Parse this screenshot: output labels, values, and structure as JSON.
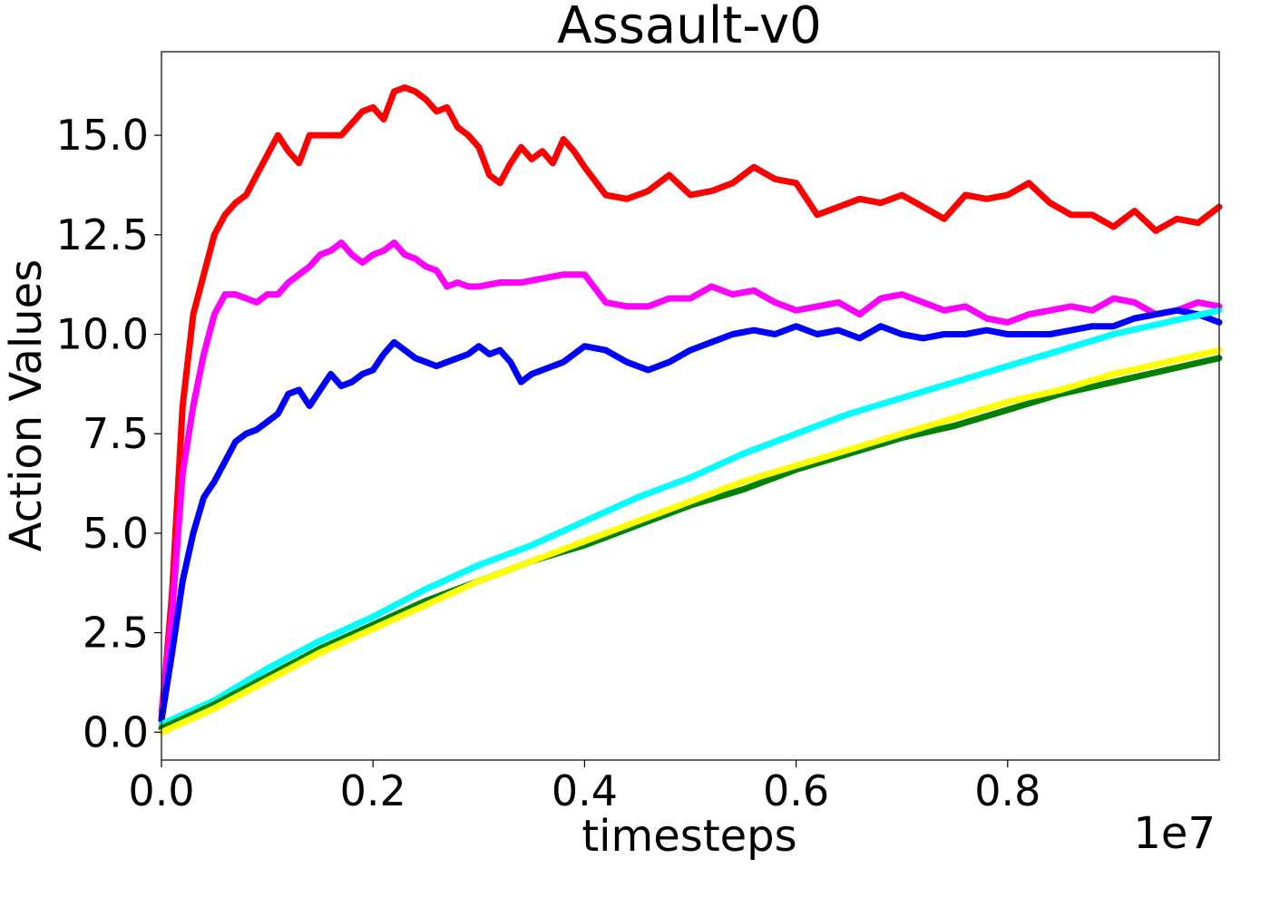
{
  "chart_data": {
    "type": "line",
    "title": "Assault-v0",
    "xlabel": "timesteps",
    "ylabel": "Action Values",
    "x_offset_text": "1e7",
    "xlim": [
      0.0,
      1.0
    ],
    "ylim": [
      -0.7,
      17.1
    ],
    "x_ticks": [
      0.0,
      0.2,
      0.4,
      0.6,
      0.8
    ],
    "x_tick_labels": [
      "0.0",
      "0.2",
      "0.4",
      "0.6",
      "0.8"
    ],
    "y_ticks": [
      0.0,
      2.5,
      5.0,
      7.5,
      10.0,
      12.5,
      15.0
    ],
    "y_tick_labels": [
      "0.0",
      "2.5",
      "5.0",
      "7.5",
      "10.0",
      "12.5",
      "15.0"
    ],
    "grid": false,
    "legend": "none",
    "series": [
      {
        "color": "#ff0000",
        "x": [
          0.0,
          0.01,
          0.02,
          0.03,
          0.04,
          0.05,
          0.06,
          0.07,
          0.08,
          0.09,
          0.1,
          0.11,
          0.12,
          0.13,
          0.14,
          0.15,
          0.16,
          0.17,
          0.18,
          0.19,
          0.2,
          0.21,
          0.22,
          0.23,
          0.24,
          0.25,
          0.26,
          0.27,
          0.28,
          0.29,
          0.3,
          0.31,
          0.32,
          0.33,
          0.34,
          0.35,
          0.36,
          0.37,
          0.38,
          0.39,
          0.4,
          0.42,
          0.44,
          0.46,
          0.48,
          0.5,
          0.52,
          0.54,
          0.56,
          0.58,
          0.6,
          0.62,
          0.64,
          0.66,
          0.68,
          0.7,
          0.72,
          0.74,
          0.76,
          0.78,
          0.8,
          0.82,
          0.84,
          0.86,
          0.88,
          0.9,
          0.92,
          0.94,
          0.96,
          0.98,
          1.0
        ],
        "y": [
          0.3,
          3.5,
          8.2,
          10.5,
          11.5,
          12.5,
          13.0,
          13.3,
          13.5,
          14.0,
          14.5,
          15.0,
          14.6,
          14.3,
          15.0,
          15.0,
          15.0,
          15.0,
          15.3,
          15.6,
          15.7,
          15.4,
          16.1,
          16.2,
          16.1,
          15.9,
          15.6,
          15.7,
          15.2,
          15.0,
          14.7,
          14.0,
          13.8,
          14.3,
          14.7,
          14.4,
          14.6,
          14.3,
          14.9,
          14.6,
          14.2,
          13.5,
          13.4,
          13.6,
          14.0,
          13.5,
          13.6,
          13.8,
          14.2,
          13.9,
          13.8,
          13.0,
          13.2,
          13.4,
          13.3,
          13.5,
          13.2,
          12.9,
          13.5,
          13.4,
          13.5,
          13.8,
          13.3,
          13.0,
          13.0,
          12.7,
          13.1,
          12.6,
          12.9,
          12.8,
          13.2
        ]
      },
      {
        "color": "#ff00ff",
        "x": [
          0.0,
          0.01,
          0.02,
          0.03,
          0.04,
          0.05,
          0.06,
          0.07,
          0.08,
          0.09,
          0.1,
          0.11,
          0.12,
          0.13,
          0.14,
          0.15,
          0.16,
          0.17,
          0.18,
          0.19,
          0.2,
          0.21,
          0.22,
          0.23,
          0.24,
          0.25,
          0.26,
          0.27,
          0.28,
          0.29,
          0.3,
          0.32,
          0.34,
          0.36,
          0.38,
          0.4,
          0.42,
          0.44,
          0.46,
          0.48,
          0.5,
          0.52,
          0.54,
          0.56,
          0.58,
          0.6,
          0.62,
          0.64,
          0.66,
          0.68,
          0.7,
          0.72,
          0.74,
          0.76,
          0.78,
          0.8,
          0.82,
          0.84,
          0.86,
          0.88,
          0.9,
          0.92,
          0.94,
          0.96,
          0.98,
          1.0
        ],
        "y": [
          0.5,
          3.0,
          6.5,
          8.2,
          9.5,
          10.5,
          11.0,
          11.0,
          10.9,
          10.8,
          11.0,
          11.0,
          11.3,
          11.5,
          11.7,
          12.0,
          12.1,
          12.3,
          12.0,
          11.8,
          12.0,
          12.1,
          12.3,
          12.0,
          11.9,
          11.7,
          11.6,
          11.2,
          11.3,
          11.2,
          11.2,
          11.3,
          11.3,
          11.4,
          11.5,
          11.5,
          10.8,
          10.7,
          10.7,
          10.9,
          10.9,
          11.2,
          11.0,
          11.1,
          10.8,
          10.6,
          10.7,
          10.8,
          10.5,
          10.9,
          11.0,
          10.8,
          10.6,
          10.7,
          10.4,
          10.3,
          10.5,
          10.6,
          10.7,
          10.6,
          10.9,
          10.8,
          10.5,
          10.6,
          10.8,
          10.7
        ]
      },
      {
        "color": "#0000ff",
        "x": [
          0.0,
          0.01,
          0.02,
          0.03,
          0.04,
          0.05,
          0.06,
          0.07,
          0.08,
          0.09,
          0.1,
          0.11,
          0.12,
          0.13,
          0.14,
          0.15,
          0.16,
          0.17,
          0.18,
          0.19,
          0.2,
          0.21,
          0.22,
          0.23,
          0.24,
          0.25,
          0.26,
          0.27,
          0.28,
          0.29,
          0.3,
          0.31,
          0.32,
          0.33,
          0.34,
          0.35,
          0.36,
          0.38,
          0.4,
          0.42,
          0.44,
          0.46,
          0.48,
          0.5,
          0.52,
          0.54,
          0.56,
          0.58,
          0.6,
          0.62,
          0.64,
          0.66,
          0.68,
          0.7,
          0.72,
          0.74,
          0.76,
          0.78,
          0.8,
          0.82,
          0.84,
          0.86,
          0.88,
          0.9,
          0.92,
          0.94,
          0.96,
          0.98,
          1.0
        ],
        "y": [
          0.3,
          2.0,
          3.8,
          5.0,
          5.9,
          6.3,
          6.8,
          7.3,
          7.5,
          7.6,
          7.8,
          8.0,
          8.5,
          8.6,
          8.2,
          8.6,
          9.0,
          8.7,
          8.8,
          9.0,
          9.1,
          9.5,
          9.8,
          9.6,
          9.4,
          9.3,
          9.2,
          9.3,
          9.4,
          9.5,
          9.7,
          9.5,
          9.6,
          9.3,
          8.8,
          9.0,
          9.1,
          9.3,
          9.7,
          9.6,
          9.3,
          9.1,
          9.3,
          9.6,
          9.8,
          10.0,
          10.1,
          10.0,
          10.2,
          10.0,
          10.1,
          9.9,
          10.2,
          10.0,
          9.9,
          10.0,
          10.0,
          10.1,
          10.0,
          10.0,
          10.0,
          10.1,
          10.2,
          10.2,
          10.4,
          10.5,
          10.6,
          10.5,
          10.3
        ]
      },
      {
        "color": "#00ffff",
        "x": [
          0.0,
          0.05,
          0.1,
          0.15,
          0.2,
          0.25,
          0.3,
          0.35,
          0.4,
          0.45,
          0.5,
          0.55,
          0.6,
          0.65,
          0.7,
          0.75,
          0.8,
          0.85,
          0.9,
          0.95,
          1.0
        ],
        "y": [
          0.2,
          0.8,
          1.6,
          2.3,
          2.9,
          3.6,
          4.2,
          4.7,
          5.3,
          5.9,
          6.4,
          7.0,
          7.5,
          8.0,
          8.4,
          8.8,
          9.2,
          9.6,
          10.0,
          10.3,
          10.6
        ]
      },
      {
        "color": "#008000",
        "x": [
          0.0,
          0.05,
          0.1,
          0.15,
          0.2,
          0.25,
          0.3,
          0.35,
          0.4,
          0.45,
          0.5,
          0.55,
          0.6,
          0.65,
          0.7,
          0.75,
          0.8,
          0.85,
          0.9,
          0.95,
          1.0
        ],
        "y": [
          0.1,
          0.7,
          1.4,
          2.1,
          2.7,
          3.3,
          3.8,
          4.3,
          4.7,
          5.2,
          5.7,
          6.1,
          6.6,
          7.0,
          7.4,
          7.7,
          8.1,
          8.5,
          8.8,
          9.1,
          9.4
        ]
      },
      {
        "color": "#ffff00",
        "x": [
          0.0,
          0.05,
          0.1,
          0.15,
          0.2,
          0.25,
          0.3,
          0.35,
          0.4,
          0.45,
          0.5,
          0.55,
          0.6,
          0.65,
          0.7,
          0.75,
          0.8,
          0.85,
          0.9,
          0.95,
          1.0
        ],
        "y": [
          0.0,
          0.6,
          1.3,
          2.0,
          2.6,
          3.2,
          3.8,
          4.3,
          4.8,
          5.3,
          5.8,
          6.3,
          6.7,
          7.1,
          7.5,
          7.9,
          8.3,
          8.6,
          9.0,
          9.3,
          9.6
        ]
      }
    ]
  }
}
